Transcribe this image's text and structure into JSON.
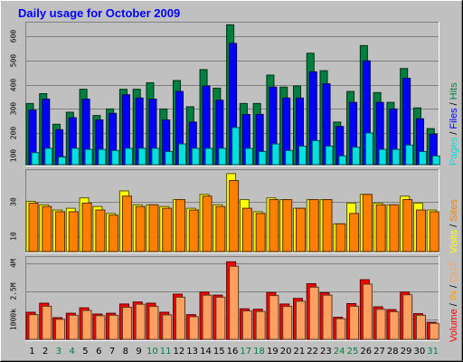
{
  "title": "Daily usage for October 2009",
  "chart_data": [
    {
      "type": "bar",
      "panel": "pages-files-hits",
      "categories": [
        "1",
        "2",
        "3",
        "4",
        "5",
        "6",
        "7",
        "8",
        "9",
        "10",
        "11",
        "12",
        "13",
        "14",
        "15",
        "16",
        "17",
        "18",
        "19",
        "20",
        "21",
        "22",
        "23",
        "24",
        "25",
        "26",
        "27",
        "28",
        "29",
        "30",
        "31"
      ],
      "series": [
        {
          "name": "Hits",
          "color": "#008040",
          "values": [
            280,
            325,
            185,
            240,
            345,
            225,
            255,
            345,
            345,
            375,
            255,
            385,
            265,
            435,
            350,
            640,
            280,
            280,
            410,
            355,
            360,
            510,
            430,
            195,
            335,
            545,
            330,
            285,
            440,
            260,
            165
          ]
        },
        {
          "name": "Files",
          "color": "#0000FF",
          "values": [
            250,
            300,
            160,
            215,
            300,
            205,
            235,
            320,
            305,
            300,
            205,
            335,
            195,
            360,
            295,
            555,
            230,
            230,
            355,
            305,
            305,
            425,
            370,
            175,
            285,
            475,
            285,
            255,
            395,
            210,
            140
          ]
        },
        {
          "name": "Pages",
          "color": "#00E0E0",
          "values": [
            55,
            75,
            35,
            75,
            70,
            70,
            65,
            75,
            75,
            75,
            60,
            95,
            75,
            75,
            75,
            170,
            75,
            60,
            95,
            65,
            85,
            110,
            85,
            40,
            80,
            145,
            70,
            70,
            90,
            60,
            40
          ]
        }
      ],
      "ylim": [
        0,
        650
      ],
      "yticks": [
        "100",
        "200",
        "300",
        "400",
        "500",
        "600"
      ],
      "legend": [
        "Pages",
        "/",
        "Files",
        "/",
        "Hits"
      ]
    },
    {
      "type": "bar",
      "panel": "visits-sites",
      "categories": [
        "1",
        "2",
        "3",
        "4",
        "5",
        "6",
        "7",
        "8",
        "9",
        "10",
        "11",
        "12",
        "13",
        "14",
        "15",
        "16",
        "17",
        "18",
        "19",
        "20",
        "21",
        "22",
        "23",
        "24",
        "25",
        "26",
        "27",
        "28",
        "29",
        "30",
        "31"
      ],
      "series": [
        {
          "name": "Visits",
          "color": "#FFFF00",
          "values": [
            29,
            27,
            24,
            25,
            31,
            26,
            22,
            35,
            27,
            27,
            26,
            30,
            25,
            33,
            27,
            45,
            30,
            23,
            31,
            30,
            25,
            30,
            30,
            16,
            28,
            33,
            28,
            27,
            32,
            28,
            24
          ]
        },
        {
          "name": "Sites",
          "color": "#FF8000",
          "values": [
            28,
            26,
            23,
            23,
            28,
            24,
            21,
            32,
            26,
            27,
            25,
            30,
            24,
            32,
            26,
            41,
            25,
            22,
            30,
            30,
            25,
            30,
            30,
            16,
            22,
            33,
            27,
            27,
            30,
            24,
            23
          ]
        }
      ],
      "ylim": [
        0,
        47
      ],
      "yticks": [
        "10",
        "30"
      ],
      "legend": [
        "Visits",
        "/",
        "Sites"
      ]
    },
    {
      "type": "bar",
      "panel": "volume-in-out",
      "categories": [
        "1",
        "2",
        "3",
        "4",
        "5",
        "6",
        "7",
        "8",
        "9",
        "10",
        "11",
        "12",
        "13",
        "14",
        "15",
        "16",
        "17",
        "18",
        "19",
        "20",
        "21",
        "22",
        "23",
        "24",
        "25",
        "26",
        "27",
        "28",
        "29",
        "30",
        "31"
      ],
      "series": [
        {
          "name": "Volume",
          "color": "#FF0000",
          "values": [
            1350,
            1800,
            1080,
            1300,
            1570,
            1260,
            1300,
            1760,
            1860,
            1800,
            1350,
            2250,
            1230,
            2350,
            2200,
            3860,
            1520,
            1500,
            2330,
            1760,
            2040,
            2770,
            2320,
            1100,
            1780,
            2970,
            1620,
            1480,
            2350,
            1280,
            850
          ]
        },
        {
          "name": "OUT",
          "color": "#FFA060",
          "values": [
            1230,
            1650,
            1000,
            1200,
            1440,
            1180,
            1200,
            1600,
            1750,
            1640,
            1220,
            2100,
            1130,
            2200,
            2100,
            3640,
            1420,
            1390,
            2180,
            1640,
            1900,
            2600,
            2200,
            1030,
            1650,
            2750,
            1500,
            1380,
            2220,
            1200,
            800
          ]
        }
      ],
      "ylim": [
        0,
        4100
      ],
      "yticks": [
        "1000k",
        "2.5M",
        "4M"
      ],
      "legend": [
        "Volume",
        "/",
        "IN",
        "/",
        "OUT"
      ]
    }
  ]
}
